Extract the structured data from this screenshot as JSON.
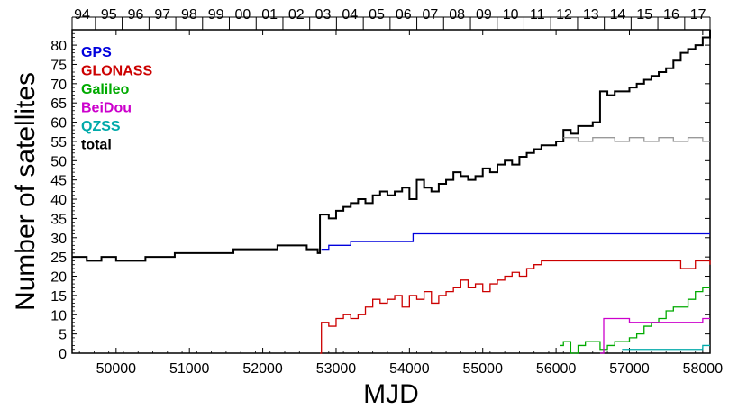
{
  "chart_data": {
    "type": "line",
    "xlabel": "MJD",
    "ylabel": "Number of satellites",
    "xlim": [
      49400,
      58100
    ],
    "ylim": [
      0,
      84
    ],
    "x_ticks": [
      50000,
      51000,
      52000,
      53000,
      54000,
      55000,
      56000,
      57000,
      58000
    ],
    "y_ticks": [
      0,
      5,
      10,
      15,
      20,
      25,
      30,
      35,
      40,
      45,
      50,
      55,
      60,
      65,
      70,
      75,
      80
    ],
    "top_axis": {
      "label_years": [
        "94",
        "95",
        "96",
        "97",
        "98",
        "99",
        "00",
        "01",
        "02",
        "03",
        "04",
        "05",
        "06",
        "07",
        "08",
        "09",
        "10",
        "11",
        "12",
        "13",
        "14",
        "15",
        "16",
        "17"
      ],
      "year_start_mjd": [
        49353,
        49718,
        50083,
        50449,
        50814,
        51179,
        51544,
        51910,
        52275,
        52640,
        53005,
        53371,
        53736,
        54101,
        54466,
        54832,
        55197,
        55562,
        55927,
        56293,
        56658,
        57023,
        57388,
        57754,
        58119
      ]
    },
    "legend": {
      "placement": "top-left"
    },
    "series": [
      {
        "name": "GPS",
        "color": "#0000dd",
        "x": [
          52800,
          52900,
          53000,
          53200,
          53400,
          53600,
          53800,
          54000,
          54050,
          54500,
          55000,
          55500,
          56000,
          56500,
          57000,
          57500,
          58000,
          58100
        ],
        "y": [
          27,
          28,
          28,
          29,
          29,
          29,
          29,
          29,
          31,
          31,
          31,
          31,
          31,
          31,
          31,
          31,
          31,
          31
        ]
      },
      {
        "name": "GLONASS",
        "color": "#cc0000",
        "x": [
          52780,
          52800,
          52900,
          53000,
          53100,
          53200,
          53300,
          53400,
          53500,
          53600,
          53700,
          53800,
          53900,
          54000,
          54100,
          54200,
          54300,
          54400,
          54500,
          54600,
          54700,
          54800,
          54900,
          55000,
          55100,
          55200,
          55300,
          55400,
          55500,
          55600,
          55700,
          55800,
          56000,
          56500,
          57000,
          57300,
          57500,
          57700,
          57900,
          58100
        ],
        "y": [
          0,
          8,
          7,
          9,
          10,
          9,
          10,
          12,
          14,
          13,
          14,
          15,
          12,
          15,
          14,
          16,
          13,
          15,
          16,
          17,
          19,
          17,
          18,
          16,
          18,
          19,
          20,
          21,
          20,
          22,
          23,
          24,
          24,
          24,
          24,
          24,
          24,
          22,
          24,
          23
        ]
      },
      {
        "name": "Galileo",
        "color": "#00aa00",
        "x": [
          56050,
          56100,
          56200,
          56300,
          56400,
          56500,
          56600,
          56700,
          56800,
          56900,
          57000,
          57100,
          57200,
          57300,
          57400,
          57500,
          57600,
          57700,
          57800,
          57900,
          58000,
          58100
        ],
        "y": [
          2,
          3,
          0,
          2,
          3,
          3,
          1,
          2,
          3,
          3,
          4,
          5,
          7,
          8,
          9,
          11,
          12,
          12,
          14,
          16,
          17,
          17
        ]
      },
      {
        "name": "BeiDou",
        "color": "#cc00cc",
        "x": [
          56600,
          56650,
          57000,
          57500,
          58000,
          58100
        ],
        "y": [
          0,
          9,
          8,
          8,
          9,
          9
        ]
      },
      {
        "name": "QZSS",
        "color": "#00aaaa",
        "x": [
          56900,
          57000,
          57500,
          57800,
          57900,
          58000,
          58100
        ],
        "y": [
          1,
          1,
          1,
          1,
          1,
          2,
          2
        ]
      },
      {
        "name": "total",
        "color": "#000000",
        "x": [
          49400,
          49600,
          49800,
          50000,
          50200,
          50400,
          50600,
          50800,
          51000,
          51200,
          51400,
          51600,
          51800,
          52000,
          52200,
          52400,
          52600,
          52750,
          52780,
          52900,
          53000,
          53100,
          53200,
          53300,
          53400,
          53500,
          53600,
          53700,
          53800,
          53900,
          54000,
          54100,
          54200,
          54300,
          54400,
          54500,
          54600,
          54700,
          54800,
          54900,
          55000,
          55100,
          55200,
          55300,
          55400,
          55500,
          55600,
          55700,
          55800,
          55900,
          56000,
          56100,
          56200,
          56300,
          56400,
          56500,
          56560,
          56600,
          56700,
          56800,
          56900,
          57000,
          57100,
          57200,
          57300,
          57400,
          57500,
          57600,
          57700,
          57800,
          57900,
          58000,
          58100
        ],
        "y": [
          25,
          24,
          25,
          24,
          24,
          25,
          25,
          26,
          26,
          26,
          26,
          27,
          27,
          27,
          28,
          28,
          27,
          26,
          36,
          35,
          37,
          38,
          39,
          40,
          39,
          41,
          42,
          41,
          42,
          43,
          40,
          45,
          43,
          42,
          44,
          45,
          47,
          46,
          45,
          46,
          48,
          47,
          49,
          50,
          49,
          51,
          52,
          53,
          54,
          54,
          55,
          58,
          57,
          59,
          59,
          60,
          60,
          68,
          67,
          68,
          68,
          69,
          70,
          71,
          72,
          73,
          74,
          76,
          78,
          79,
          80,
          82,
          84
        ]
      },
      {
        "name": "",
        "color": "#999999",
        "x": [
          56100,
          56300,
          56500,
          56600,
          56800,
          57000,
          57200,
          57400,
          57600,
          57800,
          58000,
          58100
        ],
        "y": [
          56,
          55,
          56,
          56,
          55,
          56,
          55,
          56,
          55,
          56,
          55,
          55
        ]
      }
    ]
  }
}
